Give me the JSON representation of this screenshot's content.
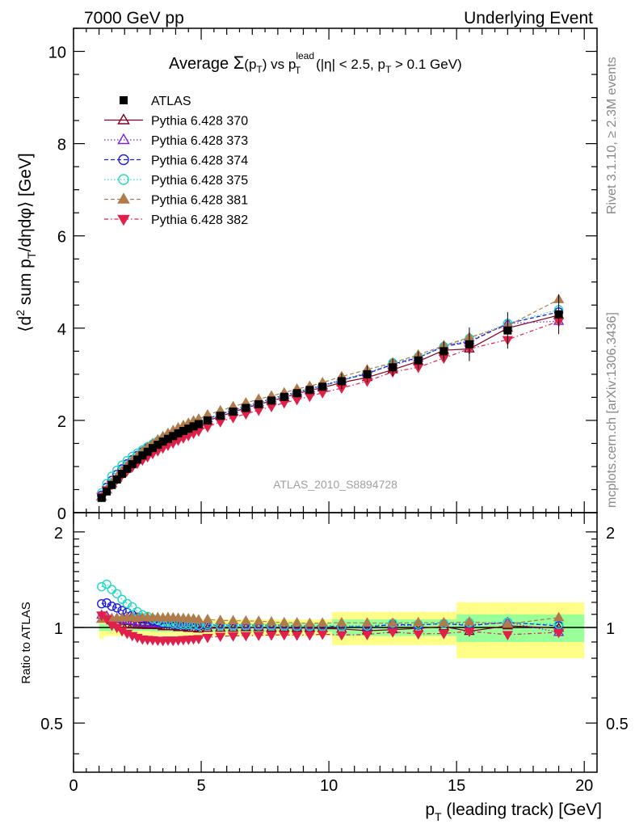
{
  "header": {
    "left": "7000 GeV pp",
    "right": "Underlying Event"
  },
  "side_labels": {
    "rivet": "Rivet 3.1.10, ≥ 2.3M events",
    "mcplots": "mcplots.cern.ch [arXiv:1306.3436]"
  },
  "chart_data": [
    {
      "type": "scatter",
      "panel": "main",
      "title": "Average Σ(p_T) vs p_T^lead (|η| < 2.5, p_T > 0.1 GeV)",
      "title_parts": {
        "a": "Average ",
        "sigma": "Σ",
        "b": "(p",
        "sub1": "T",
        "c": ") vs p",
        "sup": "lead",
        "sub2": "T",
        "d": " (|η| < 2.5, p",
        "sub3": "T",
        "e": " > 0.1 GeV)"
      },
      "ylabel": "⟨d² sum p_T/dηdφ⟩ [GeV]",
      "ylabel_parts": {
        "a": "⟨d",
        "sup": "2",
        "b": " sum p",
        "sub": "T",
        "c": "/dηdφ⟩ [GeV]"
      },
      "xlim": [
        0,
        20.5
      ],
      "ylim": [
        0,
        10.5
      ],
      "x_ticks": [
        0,
        5,
        10,
        15,
        20
      ],
      "y_ticks": [
        0,
        2,
        4,
        6,
        8,
        10
      ],
      "y_tick_labels": [
        "0",
        "2",
        "4",
        "6",
        "8",
        "10"
      ],
      "legend_position": "top-left",
      "watermark": "ATLAS_2010_S8894728",
      "x": [
        1.1,
        1.3,
        1.5,
        1.7,
        1.9,
        2.1,
        2.3,
        2.5,
        2.7,
        2.9,
        3.1,
        3.3,
        3.5,
        3.7,
        3.9,
        4.1,
        4.3,
        4.5,
        4.7,
        4.9,
        5.25,
        5.75,
        6.25,
        6.75,
        7.25,
        7.75,
        8.25,
        8.75,
        9.25,
        9.75,
        10.5,
        11.5,
        12.5,
        13.5,
        14.5,
        15.5,
        17.0,
        19.0
      ],
      "series": [
        {
          "name": "ATLAS",
          "color": "#000000",
          "marker": "square",
          "line": "none",
          "values": [
            0.32,
            0.46,
            0.6,
            0.72,
            0.84,
            0.95,
            1.05,
            1.15,
            1.24,
            1.32,
            1.4,
            1.47,
            1.54,
            1.6,
            1.66,
            1.72,
            1.77,
            1.82,
            1.87,
            1.92,
            2.0,
            2.1,
            2.19,
            2.27,
            2.35,
            2.43,
            2.51,
            2.59,
            2.66,
            2.73,
            2.85,
            3.0,
            3.15,
            3.3,
            3.5,
            3.65,
            3.95,
            4.3
          ],
          "band": [
            0.025,
            0.025,
            0.025,
            0.025,
            0.025,
            0.025,
            0.025,
            0.025,
            0.025,
            0.025,
            0.03,
            0.03,
            0.03,
            0.03,
            0.03,
            0.03,
            0.03,
            0.03,
            0.03,
            0.03,
            0.03,
            0.03,
            0.03,
            0.03,
            0.03,
            0.03,
            0.03,
            0.03,
            0.03,
            0.03,
            0.06,
            0.06,
            0.06,
            0.06,
            0.06,
            0.1,
            0.1,
            0.1
          ],
          "band2": [
            0.08,
            0.06,
            0.06,
            0.06,
            0.06,
            0.06,
            0.06,
            0.06,
            0.06,
            0.06,
            0.06,
            0.06,
            0.06,
            0.06,
            0.06,
            0.06,
            0.06,
            0.06,
            0.06,
            0.06,
            0.06,
            0.06,
            0.06,
            0.06,
            0.06,
            0.06,
            0.06,
            0.06,
            0.06,
            0.06,
            0.12,
            0.12,
            0.12,
            0.12,
            0.12,
            0.2,
            0.2,
            0.2
          ]
        },
        {
          "name": "Pythia 6.428 370",
          "color": "#800020",
          "marker": "triangle-up-open",
          "line": "solid",
          "values": [
            0.34,
            0.49,
            0.63,
            0.75,
            0.86,
            0.97,
            1.07,
            1.17,
            1.26,
            1.34,
            1.42,
            1.49,
            1.55,
            1.61,
            1.67,
            1.72,
            1.77,
            1.81,
            1.86,
            1.9,
            1.99,
            2.09,
            2.18,
            2.27,
            2.35,
            2.42,
            2.5,
            2.58,
            2.65,
            2.71,
            2.82,
            2.93,
            3.1,
            3.28,
            3.52,
            3.55,
            4.0,
            4.28
          ]
        },
        {
          "name": "Pythia 6.428 373",
          "color": "#7b22d4",
          "marker": "triangle-up-open",
          "line": "dotted",
          "values": [
            0.35,
            0.5,
            0.64,
            0.77,
            0.89,
            1.0,
            1.1,
            1.19,
            1.28,
            1.36,
            1.44,
            1.51,
            1.58,
            1.64,
            1.7,
            1.75,
            1.8,
            1.85,
            1.9,
            1.95,
            2.04,
            2.14,
            2.23,
            2.31,
            2.39,
            2.47,
            2.55,
            2.62,
            2.69,
            2.76,
            2.88,
            3.03,
            3.2,
            3.35,
            3.62,
            3.72,
            4.1,
            4.15
          ]
        },
        {
          "name": "Pythia 6.428 374",
          "color": "#1a1ae6",
          "marker": "circle-open",
          "line": "dashed",
          "values": [
            0.38,
            0.55,
            0.7,
            0.83,
            0.95,
            1.06,
            1.15,
            1.24,
            1.32,
            1.4,
            1.47,
            1.53,
            1.59,
            1.65,
            1.7,
            1.75,
            1.8,
            1.85,
            1.9,
            1.94,
            2.03,
            2.13,
            2.22,
            2.3,
            2.38,
            2.46,
            2.54,
            2.61,
            2.68,
            2.75,
            2.87,
            3.01,
            3.22,
            3.36,
            3.6,
            3.7,
            4.1,
            4.35
          ]
        },
        {
          "name": "Pythia 6.428 375",
          "color": "#1fd9c4",
          "marker": "circle-open",
          "line": "dotted",
          "values": [
            0.43,
            0.63,
            0.79,
            0.92,
            1.03,
            1.13,
            1.22,
            1.29,
            1.36,
            1.43,
            1.49,
            1.55,
            1.6,
            1.66,
            1.71,
            1.76,
            1.81,
            1.86,
            1.9,
            1.95,
            2.04,
            2.13,
            2.22,
            2.3,
            2.38,
            2.46,
            2.54,
            2.61,
            2.68,
            2.75,
            2.87,
            3.03,
            3.25,
            3.38,
            3.6,
            3.78,
            4.1,
            4.4
          ]
        },
        {
          "name": "Pythia 6.428 381",
          "color": "#b07c4c",
          "marker": "triangle-up",
          "line": "dashed",
          "values": [
            0.34,
            0.49,
            0.64,
            0.77,
            0.9,
            1.02,
            1.13,
            1.23,
            1.33,
            1.42,
            1.5,
            1.58,
            1.65,
            1.72,
            1.78,
            1.84,
            1.89,
            1.94,
            1.99,
            2.03,
            2.12,
            2.21,
            2.3,
            2.38,
            2.46,
            2.53,
            2.6,
            2.68,
            2.74,
            2.82,
            2.95,
            3.1,
            3.25,
            3.42,
            3.62,
            3.8,
            4.05,
            4.62
          ]
        },
        {
          "name": "Pythia 6.428 382",
          "color": "#e0204a",
          "marker": "triangle-down",
          "line": "dashdot",
          "values": [
            0.35,
            0.49,
            0.61,
            0.72,
            0.82,
            0.91,
            0.99,
            1.07,
            1.14,
            1.21,
            1.28,
            1.34,
            1.4,
            1.46,
            1.51,
            1.57,
            1.62,
            1.67,
            1.72,
            1.77,
            1.86,
            1.97,
            2.06,
            2.14,
            2.22,
            2.3,
            2.38,
            2.45,
            2.52,
            2.6,
            2.7,
            2.85,
            3.05,
            3.15,
            3.35,
            3.55,
            3.75,
            4.15
          ]
        }
      ]
    },
    {
      "type": "scatter",
      "panel": "ratio",
      "ylabel": "Ratio to ATLAS",
      "xlabel": "p_T (leading track) [GeV]",
      "xlabel_parts": {
        "a": "p",
        "sub": "T",
        "b": " (leading track) [GeV]"
      },
      "xlim": [
        0,
        20.5
      ],
      "ylim": [
        0.35,
        2.3
      ],
      "x_ticks": [
        0,
        5,
        10,
        15,
        20
      ],
      "x_tick_labels": [
        "0",
        "5",
        "10",
        "15",
        "20"
      ],
      "y_ticks": [
        0.5,
        1,
        2
      ],
      "y_tick_labels": [
        "0.5",
        "1",
        "2"
      ],
      "reference_line": 1
    }
  ]
}
